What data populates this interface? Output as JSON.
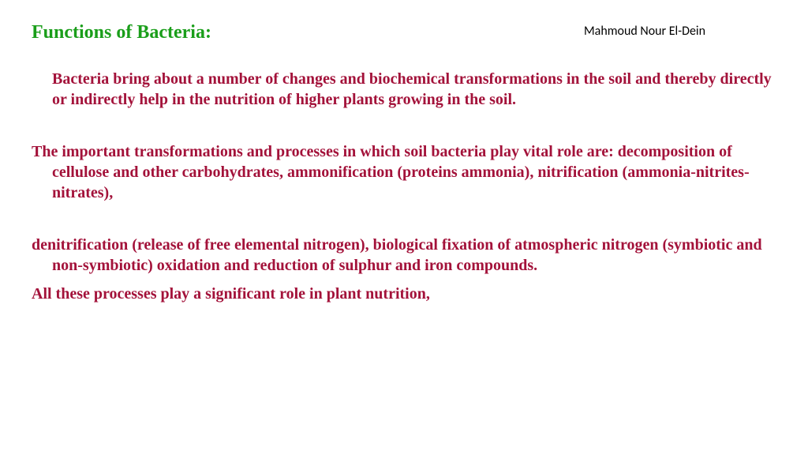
{
  "header": {
    "title": "Functions of Bacteria:",
    "author": "Mahmoud Nour El-Dein"
  },
  "paragraphs": {
    "p1": "Bacteria bring about a number of changes and biochemical transformations in the soil and thereby directly or indirectly help in the nutrition of higher plants growing in the soil.",
    "p2": "The important transformations and processes in which soil bacteria play vital role are: decomposition of cellulose and other carbohydrates, ammonification (proteins ammonia), nitrification (ammonia-nitrites-nitrates),",
    "p3": "denitrification (release of free elemental nitrogen), biological fixation of atmospheric nitrogen (symbiotic and non-symbiotic) oxidation and reduction of sulphur and iron compounds.",
    "p4": "All these processes play a significant role in plant nutrition,"
  },
  "colors": {
    "title": "#1a9e1a",
    "body": "#a3123a",
    "author": "#000000",
    "background": "#ffffff"
  },
  "typography": {
    "title_fontsize": 24,
    "body_fontsize": 20,
    "author_fontsize": 16,
    "title_weight": "bold",
    "body_weight": "bold",
    "font_family": "Times New Roman"
  }
}
